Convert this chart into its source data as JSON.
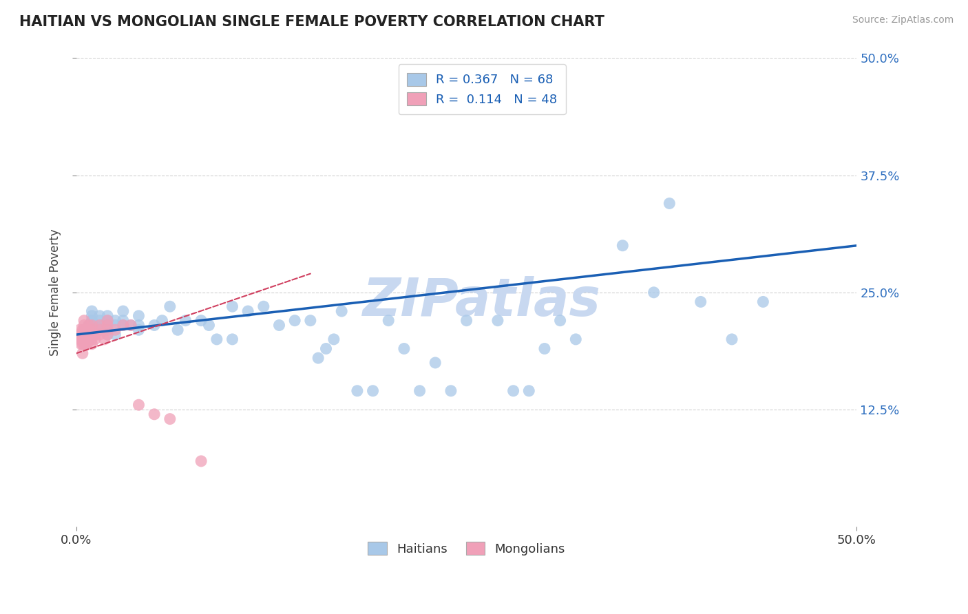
{
  "title": "HAITIAN VS MONGOLIAN SINGLE FEMALE POVERTY CORRELATION CHART",
  "source": "Source: ZipAtlas.com",
  "ylabel": "Single Female Poverty",
  "xlim": [
    0.0,
    0.5
  ],
  "ylim": [
    0.0,
    0.5
  ],
  "ytick_labels_right": [
    "50.0%",
    "37.5%",
    "25.0%",
    "12.5%"
  ],
  "ytick_positions_right": [
    0.5,
    0.375,
    0.25,
    0.125
  ],
  "legend_blue_r": "0.367",
  "legend_blue_n": "68",
  "legend_pink_r": "0.114",
  "legend_pink_n": "48",
  "blue_color": "#a8c8e8",
  "pink_color": "#f0a0b8",
  "blue_line_color": "#1a5fb4",
  "pink_line_color": "#d04060",
  "watermark": "ZIPatlas",
  "watermark_color": "#c8d8f0",
  "title_color": "#222222",
  "axis_label_color": "#444444",
  "tick_color_right": "#3070c0",
  "grid_color": "#cccccc",
  "haitians_x": [
    0.005,
    0.008,
    0.01,
    0.01,
    0.01,
    0.01,
    0.01,
    0.01,
    0.012,
    0.015,
    0.015,
    0.015,
    0.015,
    0.018,
    0.02,
    0.02,
    0.02,
    0.02,
    0.02,
    0.025,
    0.025,
    0.025,
    0.03,
    0.03,
    0.03,
    0.035,
    0.04,
    0.04,
    0.04,
    0.05,
    0.055,
    0.06,
    0.065,
    0.07,
    0.08,
    0.085,
    0.09,
    0.1,
    0.1,
    0.11,
    0.12,
    0.13,
    0.14,
    0.15,
    0.155,
    0.16,
    0.165,
    0.17,
    0.18,
    0.19,
    0.2,
    0.21,
    0.22,
    0.23,
    0.24,
    0.25,
    0.27,
    0.28,
    0.29,
    0.3,
    0.31,
    0.32,
    0.35,
    0.37,
    0.38,
    0.4,
    0.42,
    0.44
  ],
  "haitians_y": [
    0.21,
    0.215,
    0.21,
    0.215,
    0.22,
    0.225,
    0.23,
    0.22,
    0.215,
    0.21,
    0.215,
    0.22,
    0.225,
    0.215,
    0.205,
    0.21,
    0.215,
    0.22,
    0.225,
    0.205,
    0.215,
    0.22,
    0.23,
    0.22,
    0.215,
    0.215,
    0.225,
    0.215,
    0.21,
    0.215,
    0.22,
    0.235,
    0.21,
    0.22,
    0.22,
    0.215,
    0.2,
    0.235,
    0.2,
    0.23,
    0.235,
    0.215,
    0.22,
    0.22,
    0.18,
    0.19,
    0.2,
    0.23,
    0.145,
    0.145,
    0.22,
    0.19,
    0.145,
    0.175,
    0.145,
    0.22,
    0.22,
    0.145,
    0.145,
    0.19,
    0.22,
    0.2,
    0.3,
    0.25,
    0.345,
    0.24,
    0.2,
    0.24
  ],
  "mongolians_x": [
    0.002,
    0.002,
    0.002,
    0.003,
    0.003,
    0.003,
    0.004,
    0.004,
    0.004,
    0.004,
    0.004,
    0.005,
    0.005,
    0.005,
    0.005,
    0.005,
    0.005,
    0.006,
    0.006,
    0.006,
    0.007,
    0.007,
    0.008,
    0.008,
    0.008,
    0.008,
    0.01,
    0.01,
    0.01,
    0.01,
    0.01,
    0.012,
    0.012,
    0.015,
    0.015,
    0.015,
    0.018,
    0.02,
    0.02,
    0.02,
    0.02,
    0.025,
    0.03,
    0.035,
    0.04,
    0.05,
    0.06,
    0.08
  ],
  "mongolians_y": [
    0.2,
    0.205,
    0.21,
    0.195,
    0.2,
    0.205,
    0.185,
    0.195,
    0.2,
    0.205,
    0.21,
    0.195,
    0.2,
    0.205,
    0.21,
    0.215,
    0.22,
    0.195,
    0.2,
    0.21,
    0.195,
    0.2,
    0.2,
    0.205,
    0.21,
    0.215,
    0.195,
    0.2,
    0.205,
    0.21,
    0.215,
    0.2,
    0.205,
    0.205,
    0.21,
    0.215,
    0.2,
    0.205,
    0.21,
    0.215,
    0.22,
    0.21,
    0.215,
    0.215,
    0.13,
    0.12,
    0.115,
    0.07
  ],
  "blue_trendline_x0": 0.0,
  "blue_trendline_y0": 0.205,
  "blue_trendline_x1": 0.5,
  "blue_trendline_y1": 0.3,
  "pink_trendline_x0": 0.0,
  "pink_trendline_y0": 0.185,
  "pink_trendline_x1": 0.15,
  "pink_trendline_y1": 0.27
}
